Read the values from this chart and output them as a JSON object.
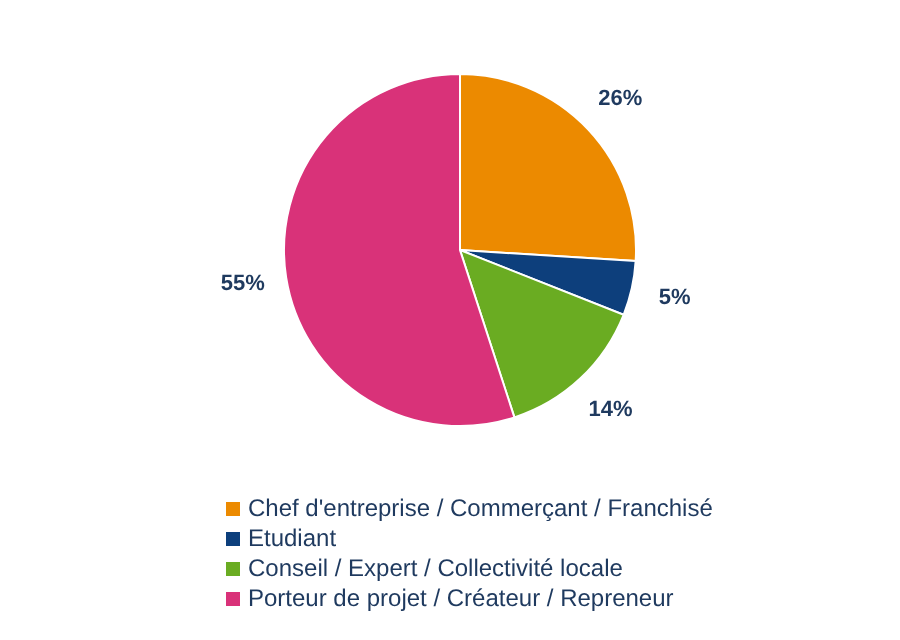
{
  "chart_data": {
    "type": "pie",
    "categories": [
      "Chef d'entreprise / Commerçant / Franchisé",
      "Etudiant",
      "Conseil / Expert / Collectivité locale",
      "Porteur de projet / Créateur / Repreneur"
    ],
    "values": [
      26,
      5,
      14,
      55
    ],
    "value_labels": [
      "26%",
      "5%",
      "14%",
      "55%"
    ],
    "colors": [
      "#ec8a00",
      "#0d3f7c",
      "#6aac22",
      "#d93279"
    ],
    "legend": "bottom"
  }
}
